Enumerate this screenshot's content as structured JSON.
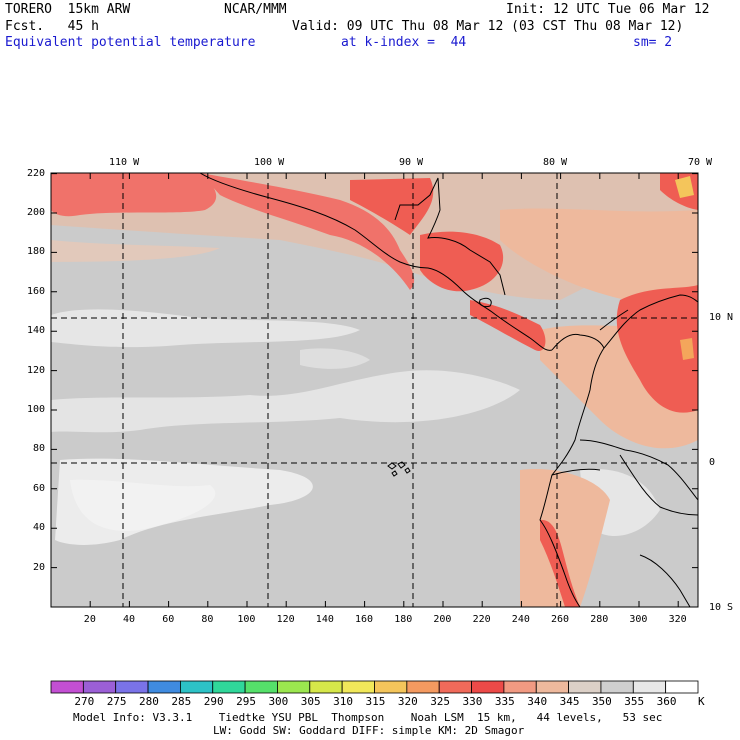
{
  "header": {
    "model": "TORERO  15km ARW",
    "center": "NCAR/MMM",
    "init": "Init: 12 UTC Tue 06 Mar 12",
    "fcst": "Fcst.   45 h",
    "valid": "Valid: 09 UTC Thu 08 Mar 12 (03 CST Thu 08 Mar 12)",
    "field": "Equivalent potential temperature",
    "level": "at k-index =  44",
    "smooth": "sm= 2"
  },
  "map": {
    "longitude_labels": [
      "110 W",
      "100 W",
      "90 W",
      "80 W",
      "70 W"
    ],
    "latitude_labels": [
      "10 N",
      "0",
      "10 S"
    ],
    "y_ticks": [
      "220",
      "200",
      "180",
      "160",
      "140",
      "120",
      "100",
      "80",
      "60",
      "40",
      "20"
    ],
    "x_ticks": [
      "20",
      "40",
      "60",
      "80",
      "100",
      "120",
      "140",
      "160",
      "180",
      "200",
      "220",
      "240",
      "260",
      "280",
      "300",
      "320"
    ]
  },
  "colorbar": {
    "labels": [
      "270",
      "275",
      "280",
      "285",
      "290",
      "295",
      "300",
      "305",
      "310",
      "315",
      "320",
      "325",
      "330",
      "335",
      "340",
      "345",
      "350",
      "355",
      "360"
    ],
    "unit": "K",
    "colors": [
      "#c34fd3",
      "#9b5fd6",
      "#7a73e8",
      "#3f8be0",
      "#2dc2c6",
      "#30d79a",
      "#55e06a",
      "#9be64f",
      "#d6e74a",
      "#f1e85a",
      "#f4c55b",
      "#f49a60",
      "#f06a5a",
      "#ec4a48",
      "#f19a82",
      "#eeb99d",
      "#dcd0c7",
      "#cfcfcf",
      "#e8e8e8",
      "#ffffff"
    ]
  },
  "footer": {
    "line1": "Model Info: V3.3.1    Tiedtke YSU PBL  Thompson    Noah LSM  15 km,   44 levels,   53 sec",
    "line2": "LW: Godd SW: Goddard DIFF: simple KM: 2D Smagor"
  }
}
